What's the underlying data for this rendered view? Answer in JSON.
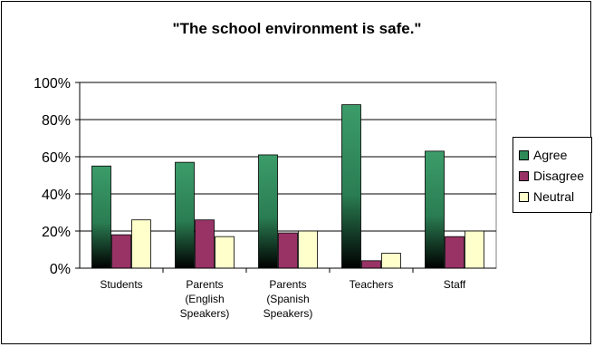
{
  "chart_data": {
    "type": "bar",
    "title": "\"The school environment is safe.\"",
    "xlabel": "",
    "ylabel": "",
    "ylim": [
      0,
      100
    ],
    "y_ticks": [
      "0%",
      "20%",
      "40%",
      "60%",
      "80%",
      "100%"
    ],
    "categories": [
      [
        "Students"
      ],
      [
        "Parents",
        "(English",
        "Speakers)"
      ],
      [
        "Parents",
        "(Spanish",
        "Speakers)"
      ],
      [
        "Teachers"
      ],
      [
        "Staff"
      ]
    ],
    "series": [
      {
        "name": "Agree",
        "color": "#2e8b57",
        "values": [
          55,
          57,
          61,
          88,
          63
        ]
      },
      {
        "name": "Disagree",
        "color": "#993366",
        "values": [
          18,
          26,
          19,
          4,
          17
        ]
      },
      {
        "name": "Neutral",
        "color": "#ffffcc",
        "values": [
          26,
          17,
          20,
          8,
          20
        ]
      }
    ],
    "grid": true,
    "legend_position": "right"
  }
}
